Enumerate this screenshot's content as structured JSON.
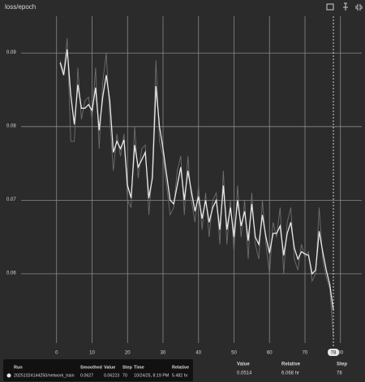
{
  "chart_data": {
    "type": "line",
    "title": "loss/epoch",
    "x": [
      1,
      2,
      3,
      4,
      5,
      6,
      7,
      8,
      9,
      10,
      11,
      12,
      13,
      14,
      15,
      16,
      17,
      18,
      19,
      20,
      21,
      22,
      23,
      24,
      25,
      26,
      27,
      28,
      29,
      30,
      31,
      32,
      33,
      34,
      35,
      36,
      37,
      38,
      39,
      40,
      41,
      42,
      43,
      44,
      45,
      46,
      47,
      48,
      49,
      50,
      51,
      52,
      53,
      54,
      55,
      56,
      57,
      58,
      59,
      60,
      61,
      62,
      63,
      64,
      65,
      66,
      67,
      68,
      69,
      70,
      71,
      72,
      73,
      74,
      75,
      76,
      77,
      78
    ],
    "series": [
      {
        "color": "#6e6e6e",
        "values": [
          0.089,
          0.0875,
          0.092,
          0.078,
          0.078,
          0.088,
          0.081,
          0.0835,
          0.084,
          0.081,
          0.088,
          0.077,
          0.086,
          0.09,
          0.081,
          0.074,
          0.079,
          0.076,
          0.079,
          0.07,
          0.069,
          0.08,
          0.073,
          0.077,
          0.0775,
          0.068,
          0.074,
          0.089,
          0.078,
          0.076,
          0.072,
          0.068,
          0.069,
          0.074,
          0.076,
          0.068,
          0.076,
          0.07,
          0.067,
          0.072,
          0.066,
          0.071,
          0.065,
          0.07,
          0.071,
          0.064,
          0.074,
          0.064,
          0.07,
          0.063,
          0.072,
          0.065,
          0.07,
          0.062,
          0.071,
          0.064,
          0.062,
          0.07,
          0.064,
          0.06,
          0.067,
          0.065,
          0.069,
          0.06,
          0.067,
          0.069,
          0.062,
          0.0605,
          0.064,
          0.06223,
          0.063,
          0.059,
          0.06,
          0.069,
          0.062,
          0.0595,
          0.058,
          0.0514
        ]
      },
      {
        "color": "#e8e8e8",
        "values": [
          0.0887,
          0.087,
          0.0905,
          0.0843,
          0.0803,
          0.0857,
          0.0825,
          0.0825,
          0.083,
          0.0822,
          0.0853,
          0.0795,
          0.084,
          0.087,
          0.0835,
          0.0765,
          0.078,
          0.077,
          0.0782,
          0.072,
          0.0703,
          0.0775,
          0.0745,
          0.0755,
          0.0765,
          0.0703,
          0.073,
          0.0855,
          0.08,
          0.077,
          0.0735,
          0.07,
          0.0695,
          0.072,
          0.0745,
          0.07,
          0.074,
          0.0712,
          0.0685,
          0.0705,
          0.0675,
          0.07,
          0.067,
          0.069,
          0.07,
          0.066,
          0.072,
          0.066,
          0.069,
          0.065,
          0.07,
          0.0665,
          0.0685,
          0.0645,
          0.0695,
          0.065,
          0.064,
          0.068,
          0.065,
          0.0628,
          0.0655,
          0.0655,
          0.0665,
          0.0625,
          0.0655,
          0.067,
          0.0635,
          0.062,
          0.063,
          0.0627,
          0.0625,
          0.06,
          0.0605,
          0.0658,
          0.063,
          0.0605,
          0.0585,
          0.055
        ]
      }
    ],
    "xlim": [
      -10,
      86
    ],
    "ylim": [
      0.0506,
      0.095
    ],
    "xticks": [
      0,
      10,
      20,
      30,
      40,
      50,
      60,
      70,
      80
    ],
    "yticks": [
      0.06,
      0.07,
      0.08,
      0.09
    ],
    "grid": true,
    "cursor_step": 78
  },
  "readout": {
    "headers": [
      "Value",
      "Relative",
      "Step"
    ],
    "values": [
      "0.0514",
      "6.068 hr",
      "78"
    ]
  },
  "tooltip": {
    "headers": [
      "Run",
      "Smoothed",
      "Value",
      "Step",
      "Time",
      "Relative"
    ],
    "row": [
      "20251024144250/network_train",
      "0.0627",
      "0.06223",
      "70",
      "10/24/25, 8:19 PM",
      "5.482 hr"
    ]
  }
}
